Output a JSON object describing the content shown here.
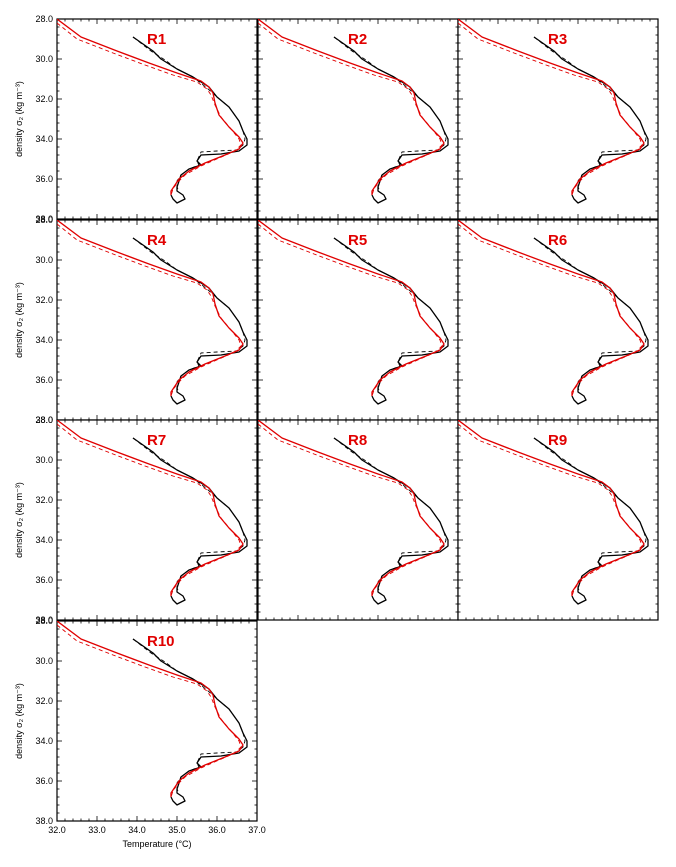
{
  "chart_data": {
    "type": "line",
    "layout": "4x3 panel grid, 10 panels",
    "panels": [
      "R1",
      "R2",
      "R3",
      "R4",
      "R5",
      "R6",
      "R7",
      "R8",
      "R9",
      "R10"
    ],
    "xlabel": "Temperature (°C)",
    "ylabel": "density σ₂ (kg m⁻³)",
    "xlim": [
      32.0,
      37.0
    ],
    "ylim": [
      38.0,
      28.0
    ],
    "y_axis_inverted": true,
    "xticks": [
      "32.0",
      "33.0",
      "34.0",
      "35.0",
      "36.0",
      "37.0"
    ],
    "yticks": [
      "28.0",
      "30.0",
      "32.0",
      "34.0",
      "36.0",
      "38.0"
    ],
    "series_colors": {
      "observed_solid": "#000000",
      "observed_dashed": "#000000",
      "model_solid": "#e00000",
      "model_dashed": "#e00000"
    },
    "series": [
      {
        "style": "black-solid",
        "points": [
          [
            33.9,
            28.9
          ],
          [
            34.4,
            29.6
          ],
          [
            34.6,
            30.0
          ],
          [
            35.0,
            30.5
          ],
          [
            35.4,
            30.9
          ],
          [
            35.8,
            31.4
          ],
          [
            36.0,
            31.9
          ],
          [
            36.3,
            32.4
          ],
          [
            36.55,
            33.1
          ],
          [
            36.65,
            33.6
          ],
          [
            36.75,
            34.0
          ],
          [
            36.75,
            34.3
          ],
          [
            36.55,
            34.6
          ],
          [
            36.1,
            34.75
          ],
          [
            35.6,
            34.8
          ],
          [
            35.5,
            35.1
          ],
          [
            35.6,
            35.3
          ],
          [
            35.3,
            35.5
          ],
          [
            35.1,
            35.8
          ],
          [
            35.05,
            36.1
          ],
          [
            35.0,
            36.4
          ],
          [
            35.0,
            36.6
          ],
          [
            35.15,
            36.8
          ],
          [
            35.2,
            37.0
          ],
          [
            35.0,
            37.2
          ],
          [
            34.9,
            37.0
          ],
          [
            34.85,
            36.8
          ]
        ]
      },
      {
        "style": "black-dashed",
        "points": [
          [
            33.9,
            28.9
          ],
          [
            34.35,
            29.6
          ],
          [
            34.7,
            30.05
          ],
          [
            35.0,
            30.5
          ],
          [
            35.4,
            30.9
          ],
          [
            35.75,
            31.45
          ],
          [
            36.0,
            31.9
          ],
          [
            36.3,
            32.4
          ],
          [
            36.55,
            33.1
          ],
          [
            36.65,
            33.6
          ],
          [
            36.7,
            34.0
          ],
          [
            36.65,
            34.3
          ],
          [
            36.5,
            34.55
          ],
          [
            36.0,
            34.6
          ],
          [
            35.6,
            34.65
          ],
          [
            35.5,
            35.1
          ],
          [
            35.55,
            35.3
          ],
          [
            35.3,
            35.5
          ],
          [
            35.1,
            35.8
          ],
          [
            35.0,
            36.1
          ],
          [
            35.0,
            36.4
          ],
          [
            35.05,
            36.6
          ]
        ]
      },
      {
        "style": "red-solid",
        "points": [
          [
            32.0,
            28.0
          ],
          [
            32.6,
            28.9
          ],
          [
            33.5,
            29.6
          ],
          [
            34.3,
            30.2
          ],
          [
            35.0,
            30.7
          ],
          [
            35.6,
            31.1
          ],
          [
            35.8,
            31.4
          ],
          [
            35.9,
            31.7
          ],
          [
            35.95,
            32.2
          ],
          [
            36.05,
            32.8
          ],
          [
            36.3,
            33.4
          ],
          [
            36.55,
            33.9
          ],
          [
            36.65,
            34.2
          ],
          [
            36.55,
            34.5
          ],
          [
            36.2,
            34.8
          ],
          [
            35.7,
            35.2
          ],
          [
            35.3,
            35.6
          ],
          [
            35.05,
            36.0
          ],
          [
            34.95,
            36.3
          ],
          [
            34.85,
            36.6
          ],
          [
            34.85,
            36.8
          ]
        ]
      },
      {
        "style": "red-dashed",
        "points": [
          [
            32.0,
            28.2
          ],
          [
            32.5,
            29.0
          ],
          [
            33.4,
            29.7
          ],
          [
            34.2,
            30.3
          ],
          [
            34.9,
            30.8
          ],
          [
            35.5,
            31.15
          ],
          [
            35.75,
            31.5
          ],
          [
            35.85,
            31.8
          ],
          [
            35.95,
            32.3
          ],
          [
            36.1,
            32.9
          ],
          [
            36.35,
            33.5
          ],
          [
            36.55,
            34.0
          ],
          [
            36.6,
            34.3
          ],
          [
            36.45,
            34.6
          ],
          [
            36.05,
            34.95
          ],
          [
            35.6,
            35.35
          ],
          [
            35.2,
            35.8
          ],
          [
            35.0,
            36.2
          ],
          [
            34.9,
            36.5
          ],
          [
            34.85,
            36.8
          ]
        ]
      }
    ]
  }
}
